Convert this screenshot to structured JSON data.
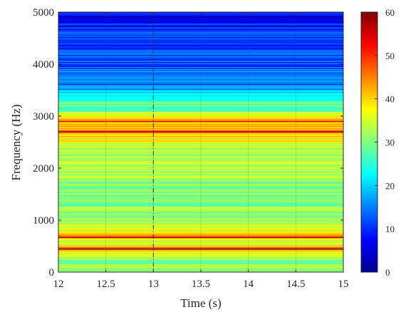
{
  "chart_data": {
    "type": "heatmap",
    "title": "",
    "xlabel": "Time (s)",
    "ylabel": "Frequency (Hz)",
    "xlim": [
      12,
      15
    ],
    "ylim": [
      0,
      5000
    ],
    "x_ticks": [
      12,
      12.5,
      13,
      13.5,
      14,
      14.5,
      15
    ],
    "x_tick_labels": [
      "12",
      "12.5",
      "13",
      "13.5",
      "14",
      "14.5",
      "15"
    ],
    "y_ticks": [
      0,
      1000,
      2000,
      3000,
      4000,
      5000
    ],
    "y_tick_labels": [
      "0",
      "1000",
      "2000",
      "3000",
      "4000",
      "5000"
    ],
    "colorbar": {
      "range": [
        0,
        60
      ],
      "ticks": [
        0,
        10,
        20,
        30,
        40,
        50,
        60
      ],
      "tick_labels": [
        "0",
        "10",
        "20",
        "30",
        "40",
        "50",
        "60"
      ],
      "colormap": "jet"
    },
    "vertical_marker_time": 13,
    "frequency_profile": {
      "frequency_hz": [
        0,
        100,
        200,
        300,
        400,
        450,
        500,
        600,
        700,
        800,
        1000,
        1200,
        1500,
        1800,
        2000,
        2200,
        2400,
        2500,
        2600,
        2700,
        2800,
        2900,
        3000,
        3100,
        3300,
        3400,
        3500,
        3600,
        3800,
        4000,
        4200,
        4400,
        4600,
        4800,
        5000
      ],
      "level": [
        30,
        32,
        28,
        33,
        36,
        52,
        38,
        34,
        47,
        35,
        32,
        31,
        30,
        31,
        33,
        32,
        34,
        36,
        38,
        48,
        40,
        42,
        40,
        30,
        25,
        20,
        18,
        14,
        15,
        12,
        13,
        10,
        11,
        8,
        9
      ]
    },
    "strong_lines_hz": [
      450,
      680,
      2700,
      2900
    ]
  }
}
